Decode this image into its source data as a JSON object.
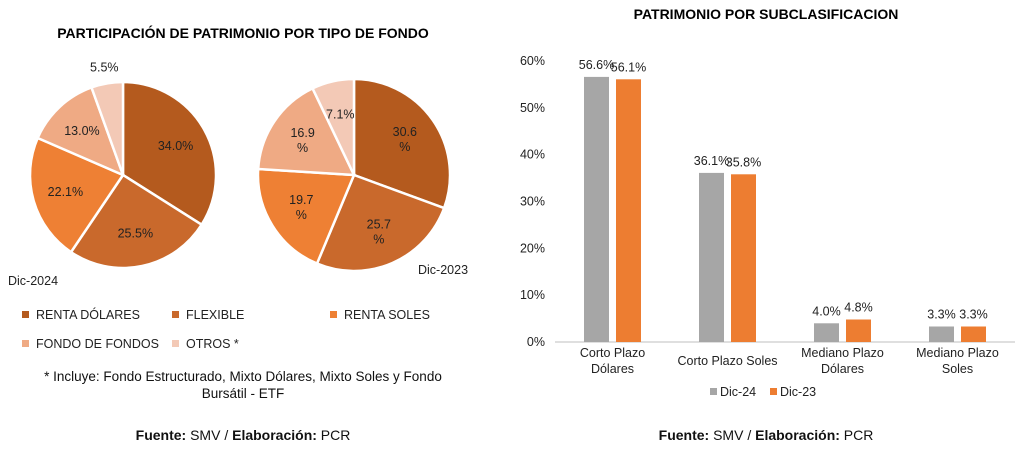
{
  "colors": {
    "renta_dolares": "#B45A1E",
    "flexible": "#C9692C",
    "renta_soles": "#EE8034",
    "fondo_de_fondos": "#EFAA84",
    "otros": "#F3C9B6",
    "dic24": "#A6A6A6",
    "dic23": "#ED7D31",
    "axis": "#BFBFBF"
  },
  "left": {
    "title": "PARTICIPACIÓN DE PATRIMONIO POR TIPO DE FONDO",
    "note_line1": "* Incluye: Fondo Estructurado, Mixto Dólares, Mixto Soles y Fondo",
    "note_line2": "Bursátil - ETF",
    "source": {
      "bold1": "Fuente:",
      "text1": " SMV / ",
      "bold2": "Elaboración:",
      "text2": " PCR"
    }
  },
  "right": {
    "source": {
      "bold1": "Fuente:",
      "text1": " SMV / ",
      "bold2": "Elaboración:",
      "text2": " PCR"
    }
  },
  "chart_data": [
    {
      "type": "pie",
      "label": "Dic-2024",
      "slices": [
        {
          "name": "RENTA DÓLARES",
          "value": 34.0,
          "text": "34.0%"
        },
        {
          "name": "FLEXIBLE",
          "value": 25.5,
          "text": "25.5%"
        },
        {
          "name": "RENTA SOLES",
          "value": 22.1,
          "text": "22.1%"
        },
        {
          "name": "FONDO DE FONDOS",
          "value": 13.0,
          "text": "13.0%"
        },
        {
          "name": "OTROS *",
          "value": 5.5,
          "text": "5.5%"
        }
      ]
    },
    {
      "type": "pie",
      "label": "Dic-2023",
      "slices": [
        {
          "name": "RENTA DÓLARES",
          "value": 30.6,
          "text": "30.6\n%"
        },
        {
          "name": "FLEXIBLE",
          "value": 25.7,
          "text": "25.7\n%"
        },
        {
          "name": "RENTA SOLES",
          "value": 19.7,
          "text": "19.7\n%"
        },
        {
          "name": "FONDO DE FONDOS",
          "value": 16.9,
          "text": "16.9\n%"
        },
        {
          "name": "OTROS *",
          "value": 7.1,
          "text": "7.1%"
        }
      ]
    },
    {
      "type": "bar",
      "title": "PATRIMONIO POR SUBCLASIFICACION",
      "categories": [
        "Corto Plazo\nDólares",
        "Corto Plazo Soles",
        "Mediano Plazo\nDólares",
        "Mediano Plazo\nSoles"
      ],
      "series": [
        {
          "name": "Dic-24",
          "values": [
            56.6,
            36.1,
            4.0,
            3.3
          ]
        },
        {
          "name": "Dic-23",
          "values": [
            56.1,
            35.8,
            4.8,
            3.3
          ]
        }
      ],
      "ylim": [
        0,
        60
      ],
      "yticks": [
        "0%",
        "10%",
        "20%",
        "30%",
        "40%",
        "50%",
        "60%"
      ],
      "grid": false,
      "legend": "bottom"
    }
  ],
  "pie_legend": [
    "RENTA DÓLARES",
    "FLEXIBLE",
    "RENTA SOLES",
    "FONDO DE FONDOS",
    "OTROS *"
  ]
}
